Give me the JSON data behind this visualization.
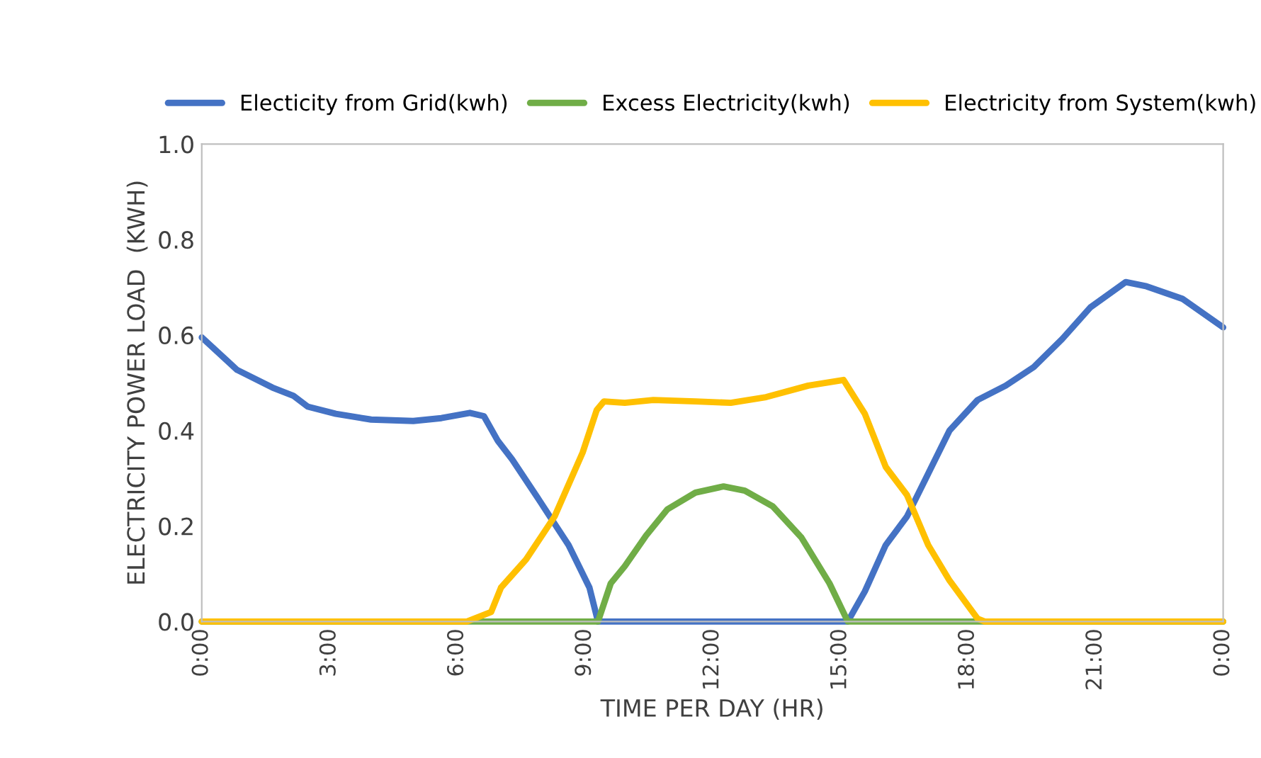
{
  "chart_data": {
    "type": "line",
    "xlabel": "TIME PER DAY (HR)",
    "ylabel": "ELECTRICITY POWER LOAD  (KWH)",
    "xlim": [
      0,
      24
    ],
    "xticks": [
      {
        "value": 0,
        "label": "0:00"
      },
      {
        "value": 3,
        "label": "3:00"
      },
      {
        "value": 6,
        "label": "6:00"
      },
      {
        "value": 9,
        "label": "9:00"
      },
      {
        "value": 12,
        "label": "12:00"
      },
      {
        "value": 15,
        "label": "15:00"
      },
      {
        "value": 18,
        "label": "18:00"
      },
      {
        "value": 21,
        "label": "21:00"
      },
      {
        "value": 24,
        "label": "0:00"
      }
    ],
    "ylim": [
      0,
      1
    ],
    "yticks": [
      {
        "value": 0,
        "label": "0.0"
      },
      {
        "value": 0.2,
        "label": "0.2"
      },
      {
        "value": 0.4,
        "label": "0.4"
      },
      {
        "value": 0.6,
        "label": "0.6"
      },
      {
        "value": 0.8,
        "label": "0.8"
      },
      {
        "value": 1,
        "label": "1.0"
      }
    ],
    "grid": false,
    "legend": "top",
    "marker": "none",
    "line_style": "solid",
    "series": [
      {
        "name": "Electicity from Grid(kwh)",
        "color": "#4472c4",
        "x": [
          0,
          0.83,
          1.66,
          2.15,
          2.49,
          3.15,
          3.98,
          4.97,
          5.63,
          6.3,
          6.63,
          6.96,
          7.29,
          7.96,
          8.62,
          9.11,
          9.31,
          15.18,
          15.58,
          16.07,
          16.57,
          17.07,
          17.57,
          18.23,
          18.89,
          19.55,
          20.22,
          20.88,
          21.71,
          22.2,
          23.04,
          24
        ],
        "values": [
          0.595,
          0.527,
          0.49,
          0.473,
          0.45,
          0.435,
          0.423,
          0.42,
          0.426,
          0.437,
          0.43,
          0.378,
          0.34,
          0.25,
          0.16,
          0.071,
          0,
          0,
          0.063,
          0.16,
          0.22,
          0.31,
          0.4,
          0.464,
          0.494,
          0.533,
          0.592,
          0.658,
          0.711,
          0.702,
          0.676,
          0.616
        ]
      },
      {
        "name": "Excess Electricity(kwh)",
        "color": "#70ad47",
        "x": [
          0,
          9.31,
          9.61,
          9.94,
          10.44,
          10.94,
          11.6,
          12.26,
          12.76,
          13.42,
          14.09,
          14.75,
          15.18,
          24
        ],
        "values": [
          0,
          0,
          0.08,
          0.116,
          0.18,
          0.235,
          0.27,
          0.283,
          0.274,
          0.241,
          0.176,
          0.08,
          0,
          0
        ]
      },
      {
        "name": "Electricity from System(kwh)",
        "color": "#ffc000",
        "x": [
          0,
          6.23,
          6.8,
          7.03,
          7.62,
          8.29,
          8.95,
          9.28,
          9.45,
          9.94,
          10.61,
          11.6,
          12.43,
          13.26,
          14.25,
          15.08,
          15.58,
          16.07,
          16.57,
          17.07,
          17.57,
          18.23,
          18.4,
          24
        ],
        "values": [
          0,
          0,
          0.02,
          0.071,
          0.13,
          0.22,
          0.354,
          0.443,
          0.461,
          0.458,
          0.464,
          0.461,
          0.458,
          0.47,
          0.494,
          0.506,
          0.435,
          0.324,
          0.265,
          0.16,
          0.086,
          0.006,
          0,
          0
        ]
      }
    ]
  }
}
